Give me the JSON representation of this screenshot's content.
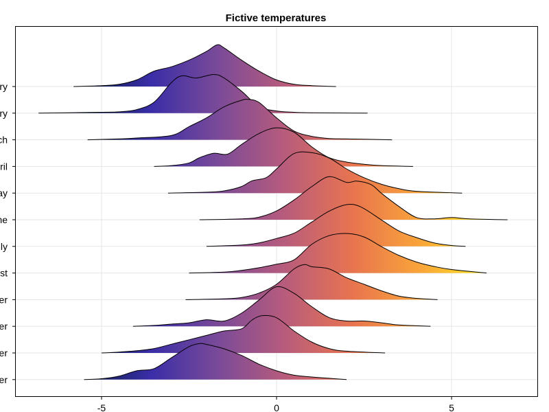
{
  "chart_data": {
    "type": "area",
    "title": "Fictive temperatures",
    "xlabel": "",
    "ylabel": "",
    "xlim": [
      -7.45,
      7.45
    ],
    "grid": true,
    "x_ticks": [
      "-5",
      "0",
      "5"
    ],
    "categories": [
      "January",
      "February",
      "March",
      "April",
      "May",
      "June",
      "July",
      "August",
      "September",
      "October",
      "November",
      "December"
    ],
    "y_tick_labels_visible": [
      "ry",
      "ry",
      "ch",
      "ril",
      "ay",
      "ne",
      "ly",
      "st",
      "er",
      "er",
      "er",
      "er"
    ],
    "colormap": [
      "#0b1f4a",
      "#3a2ea8",
      "#7a4a98",
      "#b85c7c",
      "#e8744f",
      "#f9a43a",
      "#fde725"
    ],
    "series": [
      {
        "name": "January",
        "x": [
          -5.8,
          -5.0,
          -4.5,
          -4.0,
          -3.5,
          -3.0,
          -2.5,
          -2.0,
          -1.7,
          -1.5,
          -1.0,
          -0.5,
          0,
          0.5,
          1.0,
          1.7
        ],
        "y": [
          0,
          0.02,
          0.05,
          0.15,
          0.35,
          0.45,
          0.6,
          0.8,
          0.95,
          0.88,
          0.6,
          0.35,
          0.15,
          0.05,
          0.02,
          0
        ]
      },
      {
        "name": "February",
        "x": [
          -6.8,
          -6.0,
          -5.0,
          -4.5,
          -4.0,
          -3.5,
          -3.0,
          -2.7,
          -2.3,
          -1.8,
          -1.5,
          -1.0,
          -0.5,
          0,
          0.5,
          1.0,
          2.6
        ],
        "y": [
          0,
          0.01,
          0.02,
          0.03,
          0.08,
          0.25,
          0.7,
          0.85,
          0.8,
          0.88,
          0.8,
          0.5,
          0.15,
          0.05,
          0.02,
          0.01,
          0
        ]
      },
      {
        "name": "March",
        "x": [
          -5.4,
          -4.5,
          -4.0,
          -3.0,
          -2.5,
          -2.0,
          -1.5,
          -1.0,
          -0.8,
          -0.5,
          0,
          0.5,
          1.0,
          1.5,
          2.0,
          3.3
        ],
        "y": [
          0,
          0.02,
          0.04,
          0.1,
          0.3,
          0.5,
          0.75,
          0.9,
          0.92,
          0.85,
          0.5,
          0.2,
          0.08,
          0.03,
          0.02,
          0
        ]
      },
      {
        "name": "April",
        "x": [
          -3.5,
          -3.0,
          -2.5,
          -2.2,
          -1.8,
          -1.4,
          -1.0,
          -0.5,
          0,
          0.5,
          1.0,
          1.5,
          2.0,
          2.5,
          3.0,
          3.9
        ],
        "y": [
          0,
          0.02,
          0.08,
          0.2,
          0.3,
          0.28,
          0.5,
          0.75,
          0.88,
          0.78,
          0.45,
          0.2,
          0.1,
          0.05,
          0.02,
          0
        ]
      },
      {
        "name": "May",
        "x": [
          -3.1,
          -2.0,
          -1.5,
          -1.0,
          -0.7,
          -0.3,
          0,
          0.5,
          1.0,
          1.5,
          2.0,
          2.5,
          3.0,
          3.5,
          4.0,
          5.3
        ],
        "y": [
          0,
          0.02,
          0.05,
          0.15,
          0.28,
          0.35,
          0.55,
          0.9,
          0.92,
          0.8,
          0.55,
          0.35,
          0.2,
          0.1,
          0.04,
          0
        ]
      },
      {
        "name": "June",
        "x": [
          -2.2,
          -1.0,
          -0.5,
          0,
          0.5,
          1.0,
          1.5,
          2.0,
          2.3,
          2.7,
          3.0,
          3.5,
          4.0,
          4.5,
          5.0,
          5.5,
          6.6
        ],
        "y": [
          0,
          0.02,
          0.06,
          0.2,
          0.45,
          0.75,
          0.98,
          0.85,
          0.88,
          0.8,
          0.6,
          0.3,
          0.05,
          0.02,
          0.05,
          0.02,
          0
        ]
      },
      {
        "name": "July",
        "x": [
          -2.0,
          -1.0,
          -0.5,
          0,
          0.5,
          1.0,
          1.5,
          2.0,
          2.4,
          3.0,
          3.5,
          4.0,
          4.5,
          5.0,
          5.4
        ],
        "y": [
          0,
          0.03,
          0.08,
          0.18,
          0.3,
          0.55,
          0.8,
          0.95,
          0.9,
          0.6,
          0.35,
          0.2,
          0.08,
          0.02,
          0
        ]
      },
      {
        "name": "August",
        "x": [
          -2.5,
          -1.5,
          -1.0,
          -0.5,
          0,
          0.5,
          1.0,
          1.5,
          2.0,
          2.5,
          3.0,
          3.5,
          4.0,
          4.5,
          5.0,
          6.0
        ],
        "y": [
          0,
          0.02,
          0.06,
          0.12,
          0.2,
          0.3,
          0.65,
          0.85,
          0.9,
          0.82,
          0.6,
          0.4,
          0.25,
          0.15,
          0.08,
          0
        ]
      },
      {
        "name": "September",
        "x": [
          -2.6,
          -1.5,
          -1.0,
          -0.5,
          0,
          0.5,
          0.8,
          1.0,
          1.5,
          2.0,
          2.5,
          3.0,
          3.5,
          4.0,
          4.6
        ],
        "y": [
          0,
          0.02,
          0.05,
          0.15,
          0.35,
          0.7,
          0.8,
          0.75,
          0.7,
          0.5,
          0.35,
          0.2,
          0.08,
          0.03,
          0
        ]
      },
      {
        "name": "October",
        "x": [
          -4.1,
          -3.5,
          -3.0,
          -2.5,
          -2.0,
          -1.5,
          -1.0,
          -0.5,
          0,
          0.5,
          1.0,
          1.5,
          2.0,
          2.5,
          3.0,
          3.5,
          4.4
        ],
        "y": [
          0,
          0.02,
          0.05,
          0.08,
          0.15,
          0.12,
          0.3,
          0.6,
          0.9,
          0.75,
          0.45,
          0.2,
          0.12,
          0.12,
          0.08,
          0.03,
          0
        ]
      },
      {
        "name": "November",
        "x": [
          -5.0,
          -4.5,
          -4.0,
          -3.5,
          -3.0,
          -2.5,
          -2.0,
          -1.5,
          -1.0,
          -0.7,
          -0.4,
          0,
          0.5,
          1.0,
          1.5,
          2.0,
          3.1
        ],
        "y": [
          0,
          0.02,
          0.05,
          0.1,
          0.2,
          0.3,
          0.4,
          0.5,
          0.55,
          0.75,
          0.85,
          0.8,
          0.5,
          0.25,
          0.1,
          0.04,
          0
        ]
      },
      {
        "name": "December",
        "x": [
          -5.5,
          -5.0,
          -4.5,
          -4.0,
          -3.5,
          -3.0,
          -2.5,
          -2.2,
          -2.0,
          -1.5,
          -1.0,
          -0.5,
          0,
          0.5,
          1.0,
          1.5,
          2.0
        ],
        "y": [
          0,
          0.02,
          0.08,
          0.2,
          0.25,
          0.5,
          0.75,
          0.82,
          0.8,
          0.7,
          0.55,
          0.35,
          0.2,
          0.1,
          0.06,
          0.03,
          0
        ]
      }
    ]
  }
}
